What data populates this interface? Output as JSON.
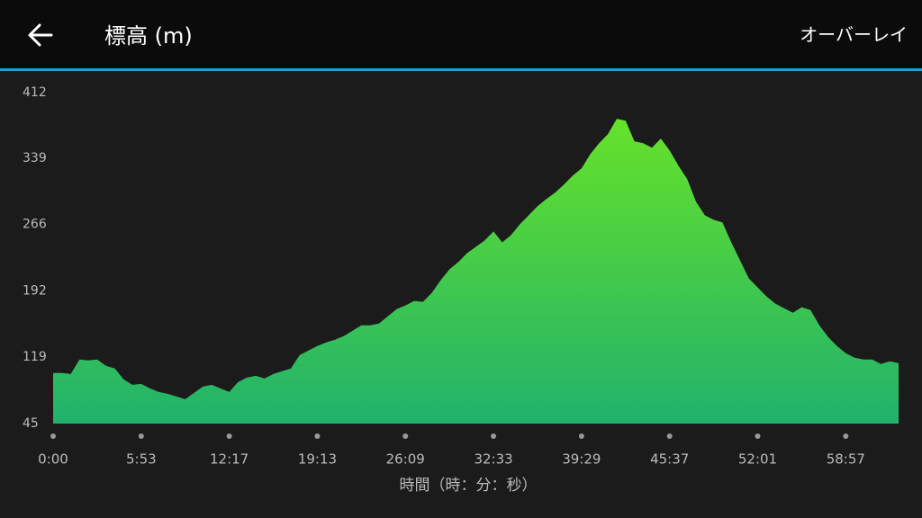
{
  "header": {
    "action": "オーバーレイ"
  },
  "chart_data": {
    "type": "area",
    "title": "標高 (m)",
    "x_label": "時間（時：分：秒）",
    "colors": {
      "top": "#66e22a",
      "bottom": "#21b26c"
    },
    "xlim": [
      0,
      96
    ],
    "ylim": [
      45,
      412
    ],
    "yticks": [
      45,
      119,
      192,
      266,
      339,
      412
    ],
    "xticks": [
      {
        "value": 0,
        "label": "0:00"
      },
      {
        "value": 10,
        "label": "5:53"
      },
      {
        "value": 20,
        "label": "12:17"
      },
      {
        "value": 30,
        "label": "19:13"
      },
      {
        "value": 40,
        "label": "26:09"
      },
      {
        "value": 50,
        "label": "32:33"
      },
      {
        "value": 60,
        "label": "39:29"
      },
      {
        "value": 70,
        "label": "45:37"
      },
      {
        "value": 80,
        "label": "52:01"
      },
      {
        "value": 90,
        "label": "58:57"
      }
    ],
    "x": [
      0,
      1,
      2,
      3,
      4,
      5,
      6,
      7,
      8,
      9,
      10,
      11,
      12,
      13,
      14,
      15,
      16,
      17,
      18,
      19,
      20,
      21,
      22,
      23,
      24,
      25,
      26,
      27,
      28,
      29,
      30,
      31,
      32,
      33,
      34,
      35,
      36,
      37,
      38,
      39,
      40,
      41,
      42,
      43,
      44,
      45,
      46,
      47,
      48,
      49,
      50,
      51,
      52,
      53,
      54,
      55,
      56,
      57,
      58,
      59,
      60,
      61,
      62,
      63,
      64,
      65,
      66,
      67,
      68,
      69,
      70,
      71,
      72,
      73,
      74,
      75,
      76,
      77,
      78,
      79,
      80,
      81,
      82,
      83,
      84,
      85,
      86,
      87,
      88,
      89,
      90,
      91,
      92,
      93,
      94,
      95,
      96
    ],
    "values": [
      101,
      101,
      100,
      116,
      115,
      116,
      109,
      106,
      94,
      88,
      89,
      84,
      80,
      78,
      75,
      72,
      79,
      86,
      88,
      84,
      80,
      91,
      96,
      98,
      95,
      100,
      103,
      106,
      121,
      126,
      131,
      135,
      138,
      142,
      148,
      154,
      154,
      156,
      164,
      172,
      176,
      181,
      180,
      190,
      204,
      216,
      224,
      234,
      241,
      248,
      258,
      246,
      254,
      266,
      276,
      286,
      294,
      301,
      310,
      320,
      328,
      344,
      356,
      366,
      383,
      381,
      358,
      356,
      351,
      361,
      348,
      331,
      316,
      291,
      276,
      271,
      268,
      246,
      226,
      206,
      196,
      186,
      178,
      173,
      168,
      174,
      171,
      154,
      141,
      131,
      123,
      118,
      116,
      116,
      111,
      114,
      112
    ]
  }
}
